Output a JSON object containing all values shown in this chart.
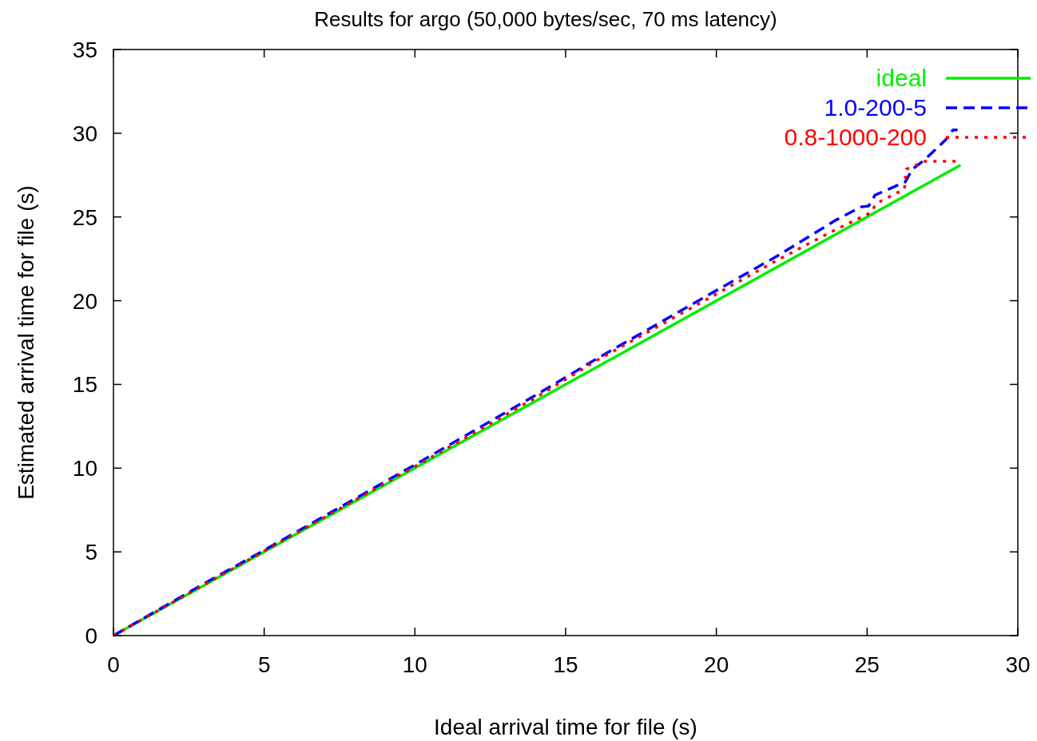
{
  "chart_data": {
    "type": "line",
    "title": "Results for argo (50,000 bytes/sec, 70 ms latency)",
    "xlabel": "Ideal arrival time for file (s)",
    "ylabel": "Estimated arrival time for file (s)",
    "xlim": [
      0,
      30
    ],
    "ylim": [
      0,
      35
    ],
    "xticks": [
      0,
      5,
      10,
      15,
      20,
      25,
      30
    ],
    "yticks": [
      0,
      5,
      10,
      15,
      20,
      25,
      30,
      35
    ],
    "grid": false,
    "legend": "top right",
    "series": [
      {
        "name": "ideal",
        "color": "#00ee00",
        "line_style": "solid",
        "x": [
          0,
          28.1
        ],
        "values": [
          0,
          28.1
        ]
      },
      {
        "name": "1.0-200-5",
        "color": "#0000ff",
        "line_style": "dashed",
        "x": [
          0,
          3,
          5,
          10,
          14,
          16,
          19.5,
          22,
          24,
          24.8,
          25.05,
          25.26,
          26.27,
          26.5,
          26.9,
          27.6,
          27.85,
          28
        ],
        "values": [
          0,
          3.1,
          5.1,
          10.2,
          14.35,
          16.5,
          20.1,
          22.65,
          24.85,
          25.6,
          25.65,
          26.3,
          27.1,
          27.85,
          28.4,
          29.6,
          30.2,
          30.2
        ]
      },
      {
        "name": "0.8-1000-200",
        "color": "#ff0000",
        "line_style": "dotted",
        "x": [
          0,
          5,
          10,
          14,
          16,
          19.5,
          22,
          23.8,
          25.13,
          25.3,
          26.24,
          26.3,
          26.93,
          28
        ],
        "values": [
          0,
          5.05,
          10.1,
          14.2,
          16.4,
          19.9,
          22.4,
          24.1,
          25.27,
          25.8,
          26.66,
          27.85,
          28.33,
          28.33
        ]
      }
    ]
  }
}
